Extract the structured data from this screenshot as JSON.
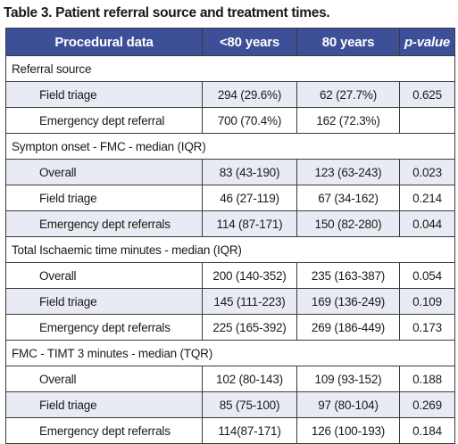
{
  "caption": "Table 3. Patient referral source and treatment times.",
  "headers": [
    "Procedural data",
    "<80 years",
    "80 years",
    "p-value"
  ],
  "sections": [
    {
      "title": "Referral source",
      "rows": [
        {
          "label": "Field triage",
          "under80": "294 (29.6%)",
          "over80": "62 (27.7%)",
          "p": "0.625"
        },
        {
          "label": "Emergency dept referral",
          "under80": "700 (70.4%)",
          "over80": "162 (72.3%)",
          "p": ""
        }
      ]
    },
    {
      "title": "Sympton onset - FMC - median (IQR)",
      "rows": [
        {
          "label": "Overall",
          "under80": "83 (43-190)",
          "over80": "123 (63-243)",
          "p": "0.023"
        },
        {
          "label": "Field triage",
          "under80": "46 (27-119)",
          "over80": "67 (34-162)",
          "p": "0.214"
        },
        {
          "label": "Emergency dept referrals",
          "under80": "114 (87-171)",
          "over80": "150 (82-280)",
          "p": "0.044"
        }
      ]
    },
    {
      "title": "Total Ischaemic time minutes - median (IQR)",
      "rows": [
        {
          "label": "Overall",
          "under80": "200 (140-352)",
          "over80": "235 (163-387)",
          "p": "0.054"
        },
        {
          "label": "Field triage",
          "under80": "145 (111-223)",
          "over80": "169 (136-249)",
          "p": "0.109"
        },
        {
          "label": "Emergency dept referrals",
          "under80": "225 (165-392)",
          "over80": "269 (186-449)",
          "p": "0.173"
        }
      ]
    },
    {
      "title": "FMC - TIMT 3 minutes - median (TQR)",
      "rows": [
        {
          "label": "Overall",
          "under80": "102 (80-143)",
          "over80": "109 (93-152)",
          "p": "0.188"
        },
        {
          "label": "Field triage",
          "under80": "85 (75-100)",
          "over80": "97 (80-104)",
          "p": "0.269"
        },
        {
          "label": "Emergency dept referrals",
          "under80": "114(87-171)",
          "over80": "126 (100-193)",
          "p": "0.184"
        }
      ]
    }
  ],
  "colors": {
    "header_bg": "#3d4f96",
    "header_text": "#ffffff",
    "row_tint": "#e9ebf4",
    "border": "#3a3a3a"
  }
}
